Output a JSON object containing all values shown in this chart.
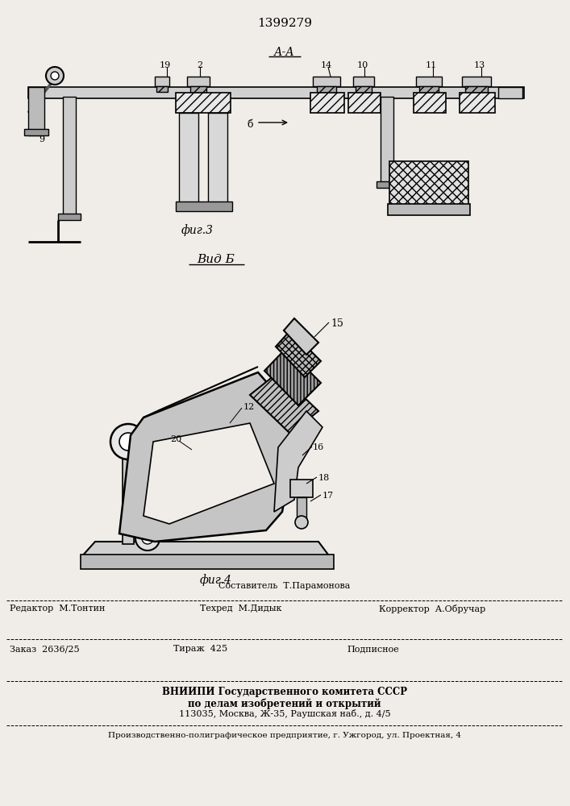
{
  "patent_number": "1399279",
  "bg_color": "#f0ede8",
  "fig3_label": "фиг.3",
  "fig4_label": "фиг.4",
  "vid_b_label": "Вид Б",
  "aa_label": "А-А",
  "footer": {
    "sostavitel_label": "Составитель  Т.Парамонова",
    "redaktor_label": "Редактор  М.Тонтин",
    "tekhred_label": "Техред  М.Дидык",
    "korrektor_label": "Корректор  А.Обручар",
    "zakaz_label": "Заказ  2636/25",
    "tirazh_label": "Тираж  425",
    "podpisnoe_label": "Подписное",
    "vnipi_line1": "ВНИИПИ Государственного комитета СССР",
    "vnipi_line2": "по делам изобретений и открытий",
    "vnipi_line3": "113035, Москва, Ж-35, Раушская наб., д. 4/5",
    "proizv_line": "Производственно-полиграфическое предприятие, г. Ужгород, ул. Проектная, 4"
  }
}
